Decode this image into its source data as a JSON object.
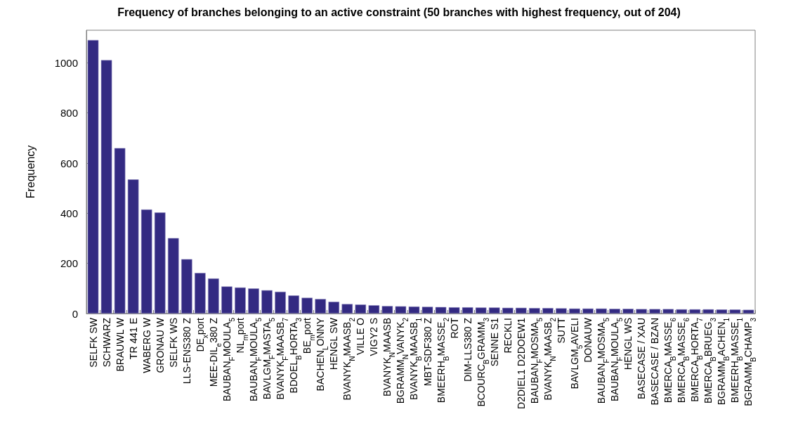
{
  "chart_data": {
    "type": "bar",
    "title": "Frequency of branches belonging to an active constraint (50 branches with highest frequency, out of 204)",
    "ylabel": "Frequency",
    "color": "#332a82",
    "categories": [
      "SELFK SW",
      "SCHWARZ",
      "BRAUWL W",
      "TR 441 E",
      "WABERG W",
      "GRONAU W",
      "SELFK WS",
      "LLS-ENS380 Z",
      "DE$_{x}$port",
      "MEE-DIL$_{e}$380 Z",
      "BAUBAN$_{F}$MOULA$_{5}$",
      "NL$_{m}$port",
      "BAUBAN$_{F}$MOULA$_{5}$",
      "BAVLGM$_{F}$MASTA$_{5}$",
      "BVANYK$_{F}$MAASB$_{7}$",
      "BDOEL$_{B}$HORTA$_{3}$",
      "BE$_{m}$port",
      "BACHEN$_{L}$ONNY",
      "HENGL SW",
      "BVANYK$_{N}$MAASB$_{2}$",
      "VILLE O",
      "VIGY2 S",
      "BVANYK$_{N}$MAASB",
      "BGRAMM$_{N}$VANYK$_{2}$",
      "BVANYK$_{B}$MAASB$_{1}$",
      "MBT-SDF380 Z",
      "BMEERH$_{B}$MASSE$_{2}$",
      "ROT",
      "DIM-LLS380 Z",
      "BCOURC$_{B}$GRAMM$_{3}$",
      "SENNE S1",
      "RECKLI",
      "D2DIEL1 D2DOEW1",
      "BAUBAN$_{F}$MOSMA$_{5}$",
      "BVANYK$_{N}$MAASB$_{2}$",
      "SUTT",
      "BAVLGM$_{5}$AVELI",
      "DONAUW",
      "BAUBAN$_{F}$MOSMA$_{5}$",
      "BAUBAN$_{F}$MOULA$_{5}$",
      "HENGL WS",
      "BASECASE / XAU",
      "BASECASE / BZAN",
      "BMERCA$_{B}$MASSE$_{6}$",
      "BMERCA$_{B}$MASSE$_{6}$",
      "BMERCA$_{B}$HORTA$_{7}$",
      "BMERCA$_{B}$BRUEG$_{3}$",
      "BGRAMM$_{B}$ACHEN$_{1}$",
      "BMEERH$_{B}$MASSE$_{1}$",
      "BGRAMM$_{B}$CHAMP$_{3}$"
    ],
    "values": [
      1091,
      1011,
      660,
      535,
      415,
      403,
      301,
      217,
      162,
      140,
      108,
      104,
      100,
      93,
      87,
      72,
      63,
      58,
      47,
      38,
      36,
      33,
      30,
      29,
      28,
      27,
      26,
      25,
      25,
      24,
      24,
      23,
      23,
      22,
      22,
      21,
      20,
      20,
      20,
      19,
      19,
      18,
      18,
      18,
      17,
      17,
      17,
      16,
      16,
      15
    ],
    "ylim": [
      0,
      1130
    ],
    "yticks": [
      0,
      200,
      400,
      600,
      800,
      1000
    ],
    "grid": false
  }
}
